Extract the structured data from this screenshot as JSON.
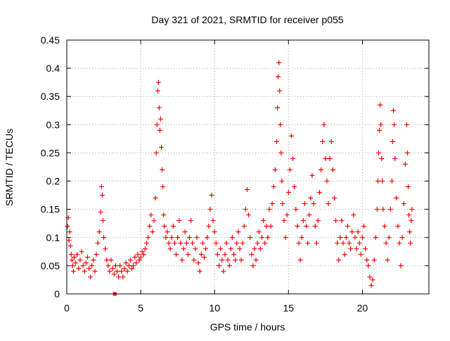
{
  "chart_data": {
    "type": "scatter",
    "title": "Day 321 of 2021, SRMTID for receiver p055",
    "xlabel": "GPS time / hours",
    "ylabel": "SRMTID / TECUs",
    "xlim": [
      0,
      24.5
    ],
    "ylim": [
      0,
      0.45
    ],
    "xticks": [
      0,
      5,
      10,
      15,
      20
    ],
    "xtick_labels": [
      "0",
      "5",
      "10",
      "15",
      "20"
    ],
    "yticks": [
      0,
      0.05,
      0.1,
      0.15,
      0.2,
      0.25,
      0.3,
      0.35,
      0.4,
      0.45
    ],
    "ytick_labels": [
      "0",
      "0.05",
      "0.1",
      "0.15",
      "0.2",
      "0.25",
      "0.3",
      "0.35",
      "0.4",
      "0.45"
    ],
    "grid": true,
    "marker": "plus",
    "series_color": "#ff0000",
    "baseline_marker": {
      "x": 3.25,
      "y": 0
    },
    "series": [
      {
        "name": "SRMTID",
        "points": [
          [
            0.05,
            0.12
          ],
          [
            0.1,
            0.135
          ],
          [
            0.15,
            0.095
          ],
          [
            0.2,
            0.11
          ],
          [
            0.25,
            0.085
          ],
          [
            0.3,
            0.07
          ],
          [
            0.35,
            0.06
          ],
          [
            0.4,
            0.05
          ],
          [
            0.45,
            0.04
          ],
          [
            0.5,
            0.065
          ],
          [
            0.6,
            0.055
          ],
          [
            0.7,
            0.07
          ],
          [
            0.8,
            0.045
          ],
          [
            0.9,
            0.06
          ],
          [
            1.0,
            0.075
          ],
          [
            1.1,
            0.05
          ],
          [
            1.2,
            0.04
          ],
          [
            1.3,
            0.055
          ],
          [
            1.4,
            0.065
          ],
          [
            1.5,
            0.045
          ],
          [
            1.6,
            0.03
          ],
          [
            1.7,
            0.05
          ],
          [
            1.8,
            0.06
          ],
          [
            1.9,
            0.04
          ],
          [
            2.0,
            0.07
          ],
          [
            2.1,
            0.09
          ],
          [
            2.2,
            0.11
          ],
          [
            2.3,
            0.145
          ],
          [
            2.35,
            0.19
          ],
          [
            2.4,
            0.175
          ],
          [
            2.45,
            0.13
          ],
          [
            2.5,
            0.1
          ],
          [
            2.6,
            0.08
          ],
          [
            2.7,
            0.06
          ],
          [
            2.8,
            0.05
          ],
          [
            2.9,
            0.04
          ],
          [
            3.0,
            0.06
          ],
          [
            3.1,
            0.045
          ],
          [
            3.2,
            0.035
          ],
          [
            3.3,
            0.05
          ],
          [
            3.4,
            0.04
          ],
          [
            3.5,
            0.03
          ],
          [
            3.6,
            0.05
          ],
          [
            3.7,
            0.04
          ],
          [
            3.8,
            0.03
          ],
          [
            3.9,
            0.045
          ],
          [
            4.0,
            0.055
          ],
          [
            4.1,
            0.04
          ],
          [
            4.2,
            0.05
          ],
          [
            4.3,
            0.06
          ],
          [
            4.4,
            0.045
          ],
          [
            4.5,
            0.05
          ],
          [
            4.6,
            0.065
          ],
          [
            4.7,
            0.055
          ],
          [
            4.8,
            0.07
          ],
          [
            4.9,
            0.06
          ],
          [
            5.0,
            0.065
          ],
          [
            5.1,
            0.075
          ],
          [
            5.2,
            0.07
          ],
          [
            5.3,
            0.08
          ],
          [
            5.4,
            0.09
          ],
          [
            5.5,
            0.1
          ],
          [
            5.6,
            0.12
          ],
          [
            5.7,
            0.14
          ],
          [
            5.8,
            0.11
          ],
          [
            5.9,
            0.13
          ],
          [
            6.0,
            0.17
          ],
          [
            6.05,
            0.25
          ],
          [
            6.1,
            0.3
          ],
          [
            6.15,
            0.36
          ],
          [
            6.2,
            0.375
          ],
          [
            6.25,
            0.33
          ],
          [
            6.3,
            0.29
          ],
          [
            6.35,
            0.31
          ],
          [
            6.4,
            0.26
          ],
          [
            6.45,
            0.22
          ],
          [
            6.5,
            0.19
          ],
          [
            6.55,
            0.14
          ],
          [
            6.6,
            0.12
          ],
          [
            6.7,
            0.1
          ],
          [
            6.8,
            0.11
          ],
          [
            6.9,
            0.09
          ],
          [
            7.0,
            0.08
          ],
          [
            7.1,
            0.1
          ],
          [
            7.2,
            0.12
          ],
          [
            7.3,
            0.09
          ],
          [
            7.4,
            0.07
          ],
          [
            7.5,
            0.1
          ],
          [
            7.6,
            0.13
          ],
          [
            7.7,
            0.09
          ],
          [
            7.8,
            0.06
          ],
          [
            7.9,
            0.08
          ],
          [
            8.0,
            0.11
          ],
          [
            8.1,
            0.09
          ],
          [
            8.2,
            0.07
          ],
          [
            8.3,
            0.1
          ],
          [
            8.4,
            0.13
          ],
          [
            8.5,
            0.09
          ],
          [
            8.6,
            0.06
          ],
          [
            8.7,
            0.08
          ],
          [
            8.8,
            0.1
          ],
          [
            8.9,
            0.055
          ],
          [
            9.0,
            0.04
          ],
          [
            9.1,
            0.07
          ],
          [
            9.2,
            0.09
          ],
          [
            9.3,
            0.065
          ],
          [
            9.4,
            0.08
          ],
          [
            9.5,
            0.1
          ],
          [
            9.6,
            0.12
          ],
          [
            9.7,
            0.15
          ],
          [
            9.8,
            0.175
          ],
          [
            9.9,
            0.13
          ],
          [
            10.0,
            0.11
          ],
          [
            10.1,
            0.09
          ],
          [
            10.2,
            0.07
          ],
          [
            10.3,
            0.05
          ],
          [
            10.4,
            0.08
          ],
          [
            10.5,
            0.06
          ],
          [
            10.6,
            0.04
          ],
          [
            10.7,
            0.07
          ],
          [
            10.8,
            0.09
          ],
          [
            10.9,
            0.06
          ],
          [
            11.0,
            0.05
          ],
          [
            11.1,
            0.08
          ],
          [
            11.2,
            0.1
          ],
          [
            11.3,
            0.07
          ],
          [
            11.4,
            0.06
          ],
          [
            11.5,
            0.09
          ],
          [
            11.6,
            0.11
          ],
          [
            11.7,
            0.08
          ],
          [
            11.8,
            0.06
          ],
          [
            11.9,
            0.09
          ],
          [
            12.0,
            0.12
          ],
          [
            12.1,
            0.15
          ],
          [
            12.2,
            0.185
          ],
          [
            12.3,
            0.14
          ],
          [
            12.4,
            0.1
          ],
          [
            12.5,
            0.07
          ],
          [
            12.6,
            0.05
          ],
          [
            12.7,
            0.08
          ],
          [
            12.8,
            0.06
          ],
          [
            12.9,
            0.09
          ],
          [
            13.0,
            0.11
          ],
          [
            13.1,
            0.08
          ],
          [
            13.2,
            0.1
          ],
          [
            13.3,
            0.13
          ],
          [
            13.4,
            0.09
          ],
          [
            13.5,
            0.12
          ],
          [
            13.6,
            0.1
          ],
          [
            13.7,
            0.15
          ],
          [
            13.8,
            0.12
          ],
          [
            13.9,
            0.16
          ],
          [
            14.0,
            0.19
          ],
          [
            14.1,
            0.22
          ],
          [
            14.2,
            0.27
          ],
          [
            14.25,
            0.33
          ],
          [
            14.3,
            0.385
          ],
          [
            14.35,
            0.41
          ],
          [
            14.4,
            0.36
          ],
          [
            14.45,
            0.3
          ],
          [
            14.5,
            0.25
          ],
          [
            14.55,
            0.2
          ],
          [
            14.6,
            0.16
          ],
          [
            14.7,
            0.13
          ],
          [
            14.8,
            0.1
          ],
          [
            14.9,
            0.14
          ],
          [
            15.0,
            0.18
          ],
          [
            15.1,
            0.22
          ],
          [
            15.2,
            0.28
          ],
          [
            15.3,
            0.24
          ],
          [
            15.4,
            0.19
          ],
          [
            15.5,
            0.15
          ],
          [
            15.6,
            0.12
          ],
          [
            15.7,
            0.09
          ],
          [
            15.8,
            0.06
          ],
          [
            15.9,
            0.1
          ],
          [
            16.0,
            0.13
          ],
          [
            16.1,
            0.16
          ],
          [
            16.2,
            0.12
          ],
          [
            16.3,
            0.09
          ],
          [
            16.4,
            0.14
          ],
          [
            16.5,
            0.17
          ],
          [
            16.6,
            0.21
          ],
          [
            16.7,
            0.16
          ],
          [
            16.8,
            0.12
          ],
          [
            16.9,
            0.09
          ],
          [
            17.0,
            0.13
          ],
          [
            17.1,
            0.18
          ],
          [
            17.2,
            0.22
          ],
          [
            17.3,
            0.27
          ],
          [
            17.4,
            0.3
          ],
          [
            17.5,
            0.24
          ],
          [
            17.6,
            0.2
          ],
          [
            17.7,
            0.16
          ],
          [
            17.8,
            0.24
          ],
          [
            17.9,
            0.27
          ],
          [
            18.0,
            0.22
          ],
          [
            18.1,
            0.17
          ],
          [
            18.2,
            0.13
          ],
          [
            18.3,
            0.09
          ],
          [
            18.4,
            0.06
          ],
          [
            18.5,
            0.1
          ],
          [
            18.6,
            0.13
          ],
          [
            18.7,
            0.09
          ],
          [
            18.8,
            0.07
          ],
          [
            18.9,
            0.1
          ],
          [
            19.0,
            0.12
          ],
          [
            19.1,
            0.09
          ],
          [
            19.2,
            0.08
          ],
          [
            19.3,
            0.11
          ],
          [
            19.4,
            0.14
          ],
          [
            19.5,
            0.1
          ],
          [
            19.6,
            0.08
          ],
          [
            19.7,
            0.11
          ],
          [
            19.8,
            0.09
          ],
          [
            19.9,
            0.07
          ],
          [
            20.0,
            0.1
          ],
          [
            20.1,
            0.12
          ],
          [
            20.2,
            0.08
          ],
          [
            20.3,
            0.06
          ],
          [
            20.4,
            0.05
          ],
          [
            20.5,
            0.03
          ],
          [
            20.6,
            0.015
          ],
          [
            20.7,
            0.025
          ],
          [
            20.8,
            0.06
          ],
          [
            20.9,
            0.1
          ],
          [
            21.0,
            0.15
          ],
          [
            21.05,
            0.2
          ],
          [
            21.1,
            0.25
          ],
          [
            21.15,
            0.29
          ],
          [
            21.2,
            0.335
          ],
          [
            21.25,
            0.3
          ],
          [
            21.3,
            0.24
          ],
          [
            21.35,
            0.2
          ],
          [
            21.4,
            0.15
          ],
          [
            21.5,
            0.12
          ],
          [
            21.6,
            0.09
          ],
          [
            21.7,
            0.06
          ],
          [
            21.8,
            0.1
          ],
          [
            21.9,
            0.15
          ],
          [
            22.0,
            0.2
          ],
          [
            22.05,
            0.27
          ],
          [
            22.1,
            0.325
          ],
          [
            22.15,
            0.3
          ],
          [
            22.2,
            0.24
          ],
          [
            22.3,
            0.17
          ],
          [
            22.4,
            0.12
          ],
          [
            22.5,
            0.09
          ],
          [
            22.6,
            0.05
          ],
          [
            22.7,
            0.1
          ],
          [
            22.8,
            0.16
          ],
          [
            22.9,
            0.23
          ],
          [
            23.0,
            0.3
          ],
          [
            23.05,
            0.25
          ],
          [
            23.1,
            0.19
          ],
          [
            23.15,
            0.14
          ],
          [
            23.2,
            0.11
          ],
          [
            23.25,
            0.09
          ],
          [
            23.3,
            0.13
          ],
          [
            23.35,
            0.15
          ]
        ]
      }
    ]
  }
}
